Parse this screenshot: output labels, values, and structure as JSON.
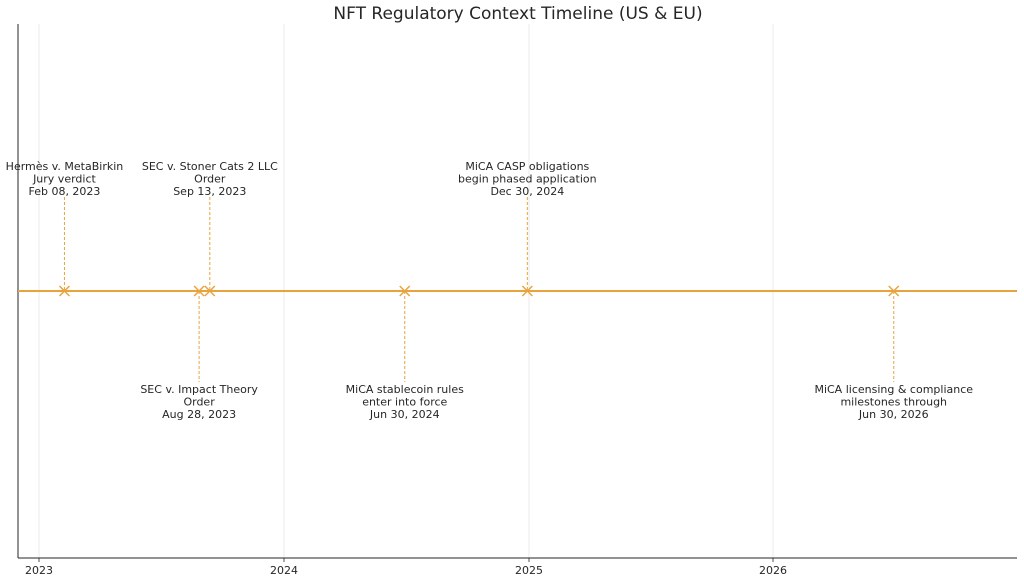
{
  "chart_data": {
    "type": "timeline",
    "title": "NFT Regulatory Context Timeline (US & EU)",
    "x_ticks": [
      "2023",
      "2024",
      "2025",
      "2026"
    ],
    "x_range": [
      "2022-12-01",
      "2026-12-31"
    ],
    "grid": true,
    "line_color": "#e8a33d",
    "events": [
      {
        "date": "2023-02-08",
        "label_lines": [
          "Hermès v. MetaBirkin",
          "Jury verdict",
          "Feb 08, 2023"
        ],
        "label_position": "above"
      },
      {
        "date": "2023-08-28",
        "label_lines": [
          "SEC v. Impact Theory",
          "Order",
          "Aug 28, 2023"
        ],
        "label_position": "below"
      },
      {
        "date": "2023-09-13",
        "label_lines": [
          "SEC v. Stoner Cats 2 LLC",
          "Order",
          "Sep 13, 2023"
        ],
        "label_position": "above"
      },
      {
        "date": "2024-06-30",
        "label_lines": [
          "MiCA stablecoin rules",
          "enter into force",
          "Jun 30, 2024"
        ],
        "label_position": "below"
      },
      {
        "date": "2024-12-30",
        "label_lines": [
          "MiCA CASP obligations",
          "begin phased application",
          "Dec 30, 2024"
        ],
        "label_position": "above"
      },
      {
        "date": "2026-06-30",
        "label_lines": [
          "MiCA licensing & compliance",
          "milestones through",
          "Jun 30, 2026"
        ],
        "label_position": "below"
      }
    ]
  }
}
